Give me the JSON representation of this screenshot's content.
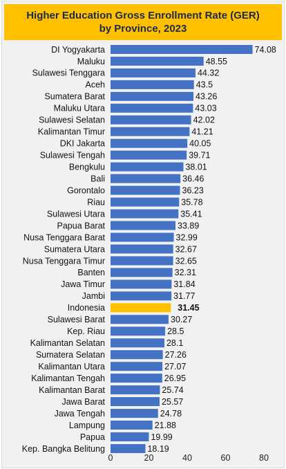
{
  "chart_data": {
    "type": "bar",
    "orientation": "horizontal",
    "title_line1": "Higher Education Gross Enrollment Rate (GER)",
    "title_line2": "by Province, 2023",
    "categories": [
      "DI Yogyakarta",
      "Maluku",
      "Sulawesi Tenggara",
      "Aceh",
      "Sumatera Barat",
      "Maluku Utara",
      "Sulawesi Selatan",
      "Kalimantan Timur",
      "DKI Jakarta",
      "Sulawesi Tengah",
      "Bengkulu",
      "Bali",
      "Gorontalo",
      "Riau",
      "Sulawesi Utara",
      "Papua Barat",
      "Nusa Tenggara Barat",
      "Sumatera Utara",
      "Nusa Tenggara Timur",
      "Banten",
      "Jawa Timur",
      "Jambi",
      "Indonesia",
      "Sulawesi Barat",
      "Kep. Riau",
      "Kalimantan Selatan",
      "Sumatera Selatan",
      "Kalimantan Utara",
      "Kalimantan Tengah",
      "Kalimantan Barat",
      "Jawa Barat",
      "Jawa Tengah",
      "Lampung",
      "Papua",
      "Kep. Bangka Belitung"
    ],
    "values": [
      74.08,
      48.55,
      44.32,
      43.5,
      43.26,
      43.03,
      42.02,
      41.21,
      40.05,
      39.71,
      38.01,
      36.46,
      36.23,
      35.78,
      35.41,
      33.89,
      32.99,
      32.67,
      32.65,
      32.31,
      31.84,
      31.77,
      31.45,
      30.27,
      28.5,
      28.1,
      27.26,
      27.07,
      26.95,
      25.74,
      25.57,
      24.78,
      21.88,
      19.99,
      18.19
    ],
    "value_labels": [
      "74.08",
      "48.55",
      "44.32",
      "43.5",
      "43.26",
      "43.03",
      "42.02",
      "41.21",
      "40.05",
      "39.71",
      "38.01",
      "36.46",
      "36.23",
      "35.78",
      "35.41",
      "33.89",
      "32.99",
      "32.67",
      "32.65",
      "32.31",
      "31.84",
      "31.77",
      "31.45",
      "30.27",
      "28.5",
      "28.1",
      "27.26",
      "27.07",
      "26.95",
      "25.74",
      "25.57",
      "24.78",
      "21.88",
      "19.99",
      "18.19"
    ],
    "highlight_category": "Indonesia",
    "xlim": [
      0,
      80
    ],
    "xticks": [
      "0",
      "20",
      "40",
      "60",
      "80"
    ],
    "grid": false,
    "colors": {
      "bar": "#4472c4",
      "highlight": "#ffc000",
      "banner": "#ffc000",
      "title_text": "#1c2a52"
    }
  }
}
